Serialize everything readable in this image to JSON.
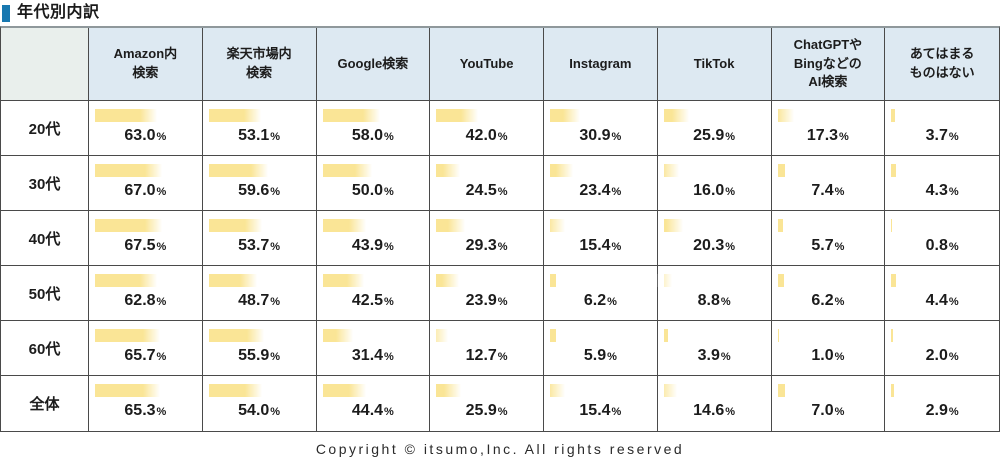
{
  "page": {
    "title": "年代別内訳",
    "footer": "Copyright © itsumo,Inc. All rights reserved"
  },
  "colors": {
    "accent_blue": "#1878b0",
    "header_bg": "#dde9f2",
    "corner_bg": "#e9efec",
    "bar_yellow": "#fae596",
    "grid_line": "#4a4a4a"
  },
  "chart_data": {
    "type": "table",
    "title": "年代別内訳",
    "unit": "%",
    "value_min": 0,
    "value_max": 100,
    "columns": [
      "Amazon内検索",
      "楽天市場内検索",
      "Google検索",
      "YouTube",
      "Instagram",
      "TikTok",
      "ChatGPTやBingなどのAI検索",
      "あてはまるものはない"
    ],
    "column_display": [
      "Amazon内\n検索",
      "楽天市場内\n検索",
      "Google検索",
      "YouTube",
      "Instagram",
      "TikTok",
      "ChatGPTや\nBingなどの\nAI検索",
      "あてはまる\nものはない"
    ],
    "rows": [
      {
        "label": "20代",
        "values": [
          63.0,
          53.1,
          58.0,
          42.0,
          30.9,
          25.9,
          17.3,
          3.7
        ]
      },
      {
        "label": "30代",
        "values": [
          67.0,
          59.6,
          50.0,
          24.5,
          23.4,
          16.0,
          7.4,
          4.3
        ]
      },
      {
        "label": "40代",
        "values": [
          67.5,
          53.7,
          43.9,
          29.3,
          15.4,
          20.3,
          5.7,
          0.8
        ]
      },
      {
        "label": "50代",
        "values": [
          62.8,
          48.7,
          42.5,
          23.9,
          6.2,
          8.8,
          6.2,
          4.4
        ]
      },
      {
        "label": "60代",
        "values": [
          65.7,
          55.9,
          31.4,
          12.7,
          5.9,
          3.9,
          1.0,
          2.0
        ]
      },
      {
        "label": "全体",
        "values": [
          65.3,
          54.0,
          44.4,
          25.9,
          15.4,
          14.6,
          7.0,
          2.9
        ]
      }
    ]
  }
}
